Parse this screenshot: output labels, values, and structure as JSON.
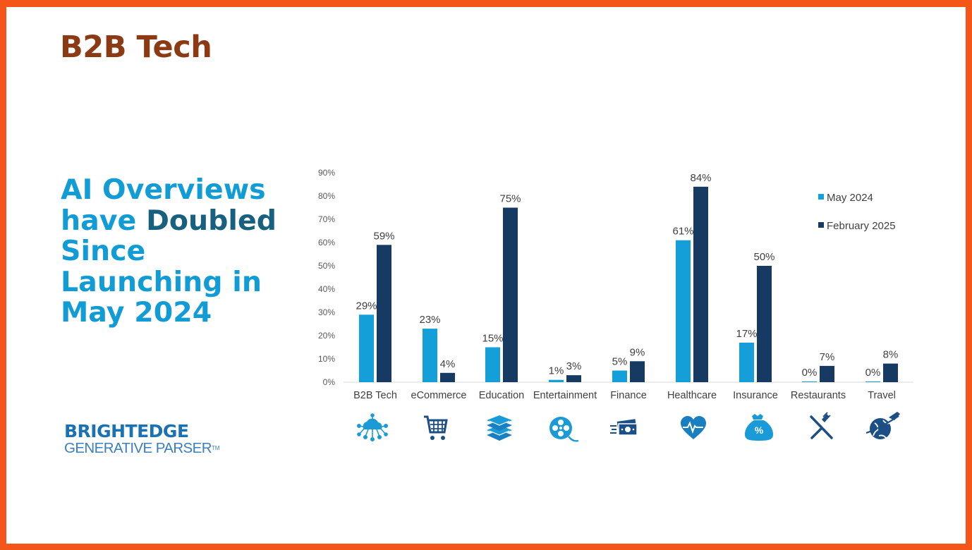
{
  "slide": {
    "title": "B2B Tech",
    "headline_part1": "AI Overviews have ",
    "headline_part2": "Doubled",
    "headline_part3": " Since Launching in May 2024"
  },
  "logo": {
    "top": "BRIGHTEDGE",
    "bottom": "GENERATIVE PARSER",
    "trademark": "TM"
  },
  "colors": {
    "border": "#f4561a",
    "title": "#8b3a14",
    "headline": "#119cd6",
    "headline_emphasis": "#17607f",
    "series_may": "#149fd8",
    "series_feb": "#173a63",
    "icon_light": "#1a9ad6",
    "icon_dark": "#1c4f86"
  },
  "chart_data": {
    "type": "bar",
    "categories": [
      "B2B Tech",
      "eCommerce",
      "Education",
      "Entertainment",
      "Finance",
      "Healthcare",
      "Insurance",
      "Restaurants",
      "Travel"
    ],
    "series": [
      {
        "name": "May 2024",
        "values": [
          29,
          23,
          15,
          1,
          5,
          61,
          17,
          0,
          0
        ],
        "labels": [
          "29%",
          "23%",
          "15%",
          "1%",
          "5%",
          "61%",
          "17%",
          "0%",
          "0%"
        ]
      },
      {
        "name": "February 2025",
        "values": [
          59,
          4,
          75,
          3,
          9,
          84,
          50,
          7,
          8
        ],
        "labels": [
          "59%",
          "4%",
          "75%",
          "3%",
          "9%",
          "84%",
          "50%",
          "7%",
          "8%"
        ]
      }
    ],
    "yticks": [
      "0%",
      "10%",
      "20%",
      "30%",
      "40%",
      "50%",
      "60%",
      "70%",
      "80%",
      "90%"
    ],
    "ylim": [
      0,
      90
    ],
    "grid": false,
    "legend_position": "top-right",
    "category_icons": [
      "cloud-network-icon",
      "shopping-cart-icon",
      "books-icon",
      "film-reel-icon",
      "money-icon",
      "heart-pulse-icon",
      "money-bag-percent-icon",
      "fork-knife-icon",
      "globe-plane-icon"
    ]
  }
}
